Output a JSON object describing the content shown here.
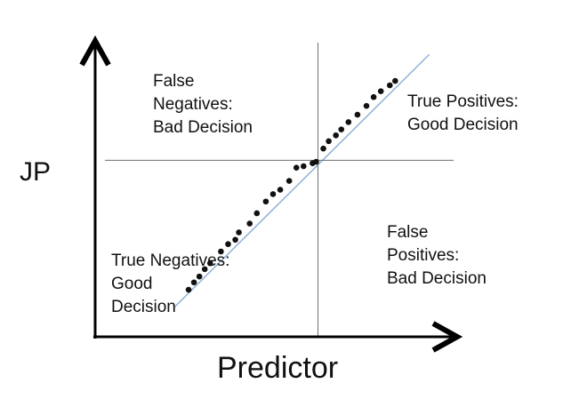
{
  "axes": {
    "y_label": "JP",
    "x_label": "Predictor"
  },
  "quadrants": {
    "top_left": {
      "lines": [
        "False",
        "Negatives:",
        "Bad Decision"
      ]
    },
    "top_right": {
      "lines": [
        "True Positives:",
        "Good Decision"
      ]
    },
    "bottom_left": {
      "lines": [
        "True Negatives:",
        "Good",
        "Decision"
      ]
    },
    "bottom_right": {
      "lines": [
        "False",
        "Positives:",
        "Bad Decision"
      ]
    }
  },
  "colors": {
    "axis": "#000000",
    "cutoff_lines": "#6e6e6e",
    "regression_line": "#8fb0d8",
    "points": "#111111"
  },
  "chart_data": {
    "type": "scatter",
    "title": "",
    "xlabel": "Predictor",
    "ylabel": "JP",
    "x_range": [
      0,
      10
    ],
    "y_range": [
      0,
      10
    ],
    "predictor_cutoff": 6.2,
    "jp_cutoff": 6.0,
    "trend_line": [
      [
        2.2,
        1.0
      ],
      [
        9.3,
        9.6
      ]
    ],
    "points": [
      [
        2.6,
        1.6
      ],
      [
        2.75,
        1.85
      ],
      [
        2.9,
        2.05
      ],
      [
        3.05,
        2.3
      ],
      [
        3.2,
        2.5
      ],
      [
        3.5,
        2.9
      ],
      [
        3.7,
        3.15
      ],
      [
        3.9,
        3.3
      ],
      [
        4.0,
        3.55
      ],
      [
        4.3,
        3.85
      ],
      [
        4.5,
        4.2
      ],
      [
        4.75,
        4.6
      ],
      [
        4.95,
        4.85
      ],
      [
        5.15,
        5.0
      ],
      [
        5.4,
        5.3
      ],
      [
        5.6,
        5.75
      ],
      [
        5.8,
        5.8
      ],
      [
        6.05,
        5.9
      ],
      [
        6.15,
        5.95
      ],
      [
        6.35,
        6.4
      ],
      [
        6.5,
        6.65
      ],
      [
        6.7,
        6.85
      ],
      [
        6.85,
        7.05
      ],
      [
        7.05,
        7.3
      ],
      [
        7.3,
        7.55
      ],
      [
        7.55,
        7.85
      ],
      [
        7.75,
        8.15
      ],
      [
        7.95,
        8.35
      ],
      [
        8.2,
        8.55
      ],
      [
        8.35,
        8.7
      ]
    ]
  }
}
